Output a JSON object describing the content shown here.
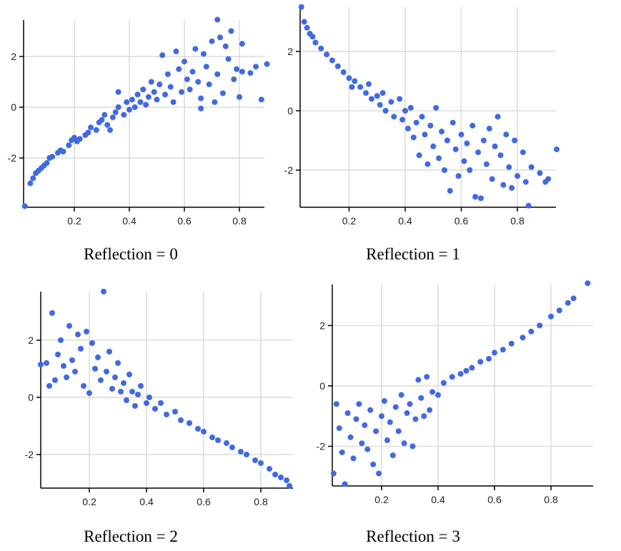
{
  "chart_data": [
    {
      "type": "scatter",
      "title": "Reflection = 0",
      "xlabel": "",
      "ylabel": "",
      "xlim": [
        0.015,
        0.89
      ],
      "ylim": [
        -3.9,
        3.4
      ],
      "xticks": [
        "0.2",
        "0.4",
        "0.6",
        "0.8"
      ],
      "yticks": [
        "-2",
        "0",
        "2"
      ],
      "grid": true,
      "color": "#4169e1",
      "points": [
        [
          0.02,
          -3.9
        ],
        [
          0.04,
          -3.0
        ],
        [
          0.05,
          -2.8
        ],
        [
          0.06,
          -2.6
        ],
        [
          0.07,
          -2.5
        ],
        [
          0.08,
          -2.4
        ],
        [
          0.09,
          -2.3
        ],
        [
          0.1,
          -2.2
        ],
        [
          0.11,
          -2.0
        ],
        [
          0.12,
          -1.95
        ],
        [
          0.14,
          -1.8
        ],
        [
          0.15,
          -1.7
        ],
        [
          0.16,
          -1.75
        ],
        [
          0.18,
          -1.5
        ],
        [
          0.19,
          -1.3
        ],
        [
          0.2,
          -1.2
        ],
        [
          0.21,
          -1.35
        ],
        [
          0.22,
          -1.25
        ],
        [
          0.24,
          -1.1
        ],
        [
          0.25,
          -1.0
        ],
        [
          0.26,
          -0.8
        ],
        [
          0.28,
          -0.9
        ],
        [
          0.29,
          -0.6
        ],
        [
          0.3,
          -0.5
        ],
        [
          0.31,
          -0.3
        ],
        [
          0.32,
          -0.7
        ],
        [
          0.33,
          -0.9
        ],
        [
          0.34,
          -0.4
        ],
        [
          0.35,
          -0.2
        ],
        [
          0.36,
          0.0
        ],
        [
          0.36,
          0.6
        ],
        [
          0.38,
          -0.3
        ],
        [
          0.39,
          0.2
        ],
        [
          0.4,
          -0.1
        ],
        [
          0.41,
          0.3
        ],
        [
          0.42,
          0.0
        ],
        [
          0.43,
          0.5
        ],
        [
          0.44,
          0.2
        ],
        [
          0.45,
          0.7
        ],
        [
          0.46,
          0.1
        ],
        [
          0.47,
          0.4
        ],
        [
          0.48,
          1.0
        ],
        [
          0.49,
          0.6
        ],
        [
          0.5,
          0.3
        ],
        [
          0.51,
          0.9
        ],
        [
          0.52,
          2.05
        ],
        [
          0.53,
          0.5
        ],
        [
          0.54,
          1.3
        ],
        [
          0.55,
          0.8
        ],
        [
          0.56,
          0.2
        ],
        [
          0.57,
          2.2
        ],
        [
          0.58,
          1.5
        ],
        [
          0.59,
          0.6
        ],
        [
          0.6,
          1.8
        ],
        [
          0.61,
          1.1
        ],
        [
          0.62,
          0.7
        ],
        [
          0.63,
          1.4
        ],
        [
          0.64,
          2.3
        ],
        [
          0.65,
          1.0
        ],
        [
          0.66,
          -0.05
        ],
        [
          0.66,
          0.35
        ],
        [
          0.67,
          2.1
        ],
        [
          0.68,
          1.6
        ],
        [
          0.69,
          0.9
        ],
        [
          0.7,
          2.6
        ],
        [
          0.71,
          0.2
        ],
        [
          0.72,
          3.45
        ],
        [
          0.72,
          1.3
        ],
        [
          0.73,
          2.75
        ],
        [
          0.74,
          0.55
        ],
        [
          0.75,
          2.4
        ],
        [
          0.76,
          1.9
        ],
        [
          0.77,
          3.0
        ],
        [
          0.78,
          1.1
        ],
        [
          0.79,
          1.5
        ],
        [
          0.8,
          0.4
        ],
        [
          0.81,
          2.5
        ],
        [
          0.81,
          1.4
        ],
        [
          0.84,
          1.35
        ],
        [
          0.86,
          1.6
        ],
        [
          0.88,
          0.3
        ],
        [
          0.9,
          1.7
        ]
      ]
    },
    {
      "type": "scatter",
      "title": "Reflection = 1",
      "xlabel": "",
      "ylabel": "",
      "xlim": [
        0.025,
        0.94
      ],
      "ylim": [
        -3.25,
        3.5
      ],
      "xticks": [
        "0.2",
        "0.4",
        "0.6",
        "0.8"
      ],
      "yticks": [
        "-2",
        "0",
        "2"
      ],
      "grid": true,
      "color": "#4169e1",
      "points": [
        [
          0.03,
          3.5
        ],
        [
          0.04,
          3.0
        ],
        [
          0.05,
          2.8
        ],
        [
          0.06,
          2.6
        ],
        [
          0.07,
          2.5
        ],
        [
          0.08,
          2.3
        ],
        [
          0.1,
          2.1
        ],
        [
          0.12,
          1.9
        ],
        [
          0.14,
          1.7
        ],
        [
          0.16,
          1.5
        ],
        [
          0.18,
          1.3
        ],
        [
          0.2,
          1.1
        ],
        [
          0.21,
          0.8
        ],
        [
          0.22,
          1.0
        ],
        [
          0.24,
          0.8
        ],
        [
          0.26,
          0.6
        ],
        [
          0.27,
          0.9
        ],
        [
          0.28,
          0.4
        ],
        [
          0.3,
          0.5
        ],
        [
          0.31,
          0.2
        ],
        [
          0.32,
          0.6
        ],
        [
          0.33,
          0.0
        ],
        [
          0.35,
          0.3
        ],
        [
          0.36,
          -0.2
        ],
        [
          0.38,
          0.4
        ],
        [
          0.39,
          -0.3
        ],
        [
          0.4,
          0.0
        ],
        [
          0.41,
          -0.6
        ],
        [
          0.42,
          0.1
        ],
        [
          0.43,
          -0.9
        ],
        [
          0.44,
          -0.4
        ],
        [
          0.45,
          -1.5
        ],
        [
          0.46,
          -0.2
        ],
        [
          0.47,
          -0.8
        ],
        [
          0.48,
          -1.8
        ],
        [
          0.49,
          -0.5
        ],
        [
          0.5,
          -1.2
        ],
        [
          0.51,
          0.1
        ],
        [
          0.52,
          -1.6
        ],
        [
          0.53,
          -0.7
        ],
        [
          0.54,
          -2.0
        ],
        [
          0.55,
          -1.0
        ],
        [
          0.56,
          -2.7
        ],
        [
          0.57,
          -0.4
        ],
        [
          0.58,
          -1.3
        ],
        [
          0.59,
          -2.2
        ],
        [
          0.6,
          -0.8
        ],
        [
          0.61,
          -1.7
        ],
        [
          0.62,
          -1.1
        ],
        [
          0.63,
          -2.0
        ],
        [
          0.64,
          -0.5
        ],
        [
          0.65,
          -2.9
        ],
        [
          0.66,
          -1.4
        ],
        [
          0.67,
          -2.95
        ],
        [
          0.68,
          -1.0
        ],
        [
          0.69,
          -1.8
        ],
        [
          0.7,
          -0.6
        ],
        [
          0.71,
          -2.3
        ],
        [
          0.72,
          -1.2
        ],
        [
          0.73,
          -0.2
        ],
        [
          0.74,
          -1.5
        ],
        [
          0.75,
          -2.5
        ],
        [
          0.76,
          -0.8
        ],
        [
          0.77,
          -1.9
        ],
        [
          0.78,
          -2.6
        ],
        [
          0.79,
          -1.0
        ],
        [
          0.8,
          -2.2
        ],
        [
          0.82,
          -1.4
        ],
        [
          0.83,
          -2.4
        ],
        [
          0.84,
          -3.2
        ],
        [
          0.85,
          -1.9
        ],
        [
          0.88,
          -2.1
        ],
        [
          0.9,
          -2.4
        ],
        [
          0.91,
          -2.3
        ],
        [
          0.94,
          -1.3
        ]
      ]
    },
    {
      "type": "scatter",
      "title": "Reflection = 2",
      "xlabel": "",
      "ylabel": "",
      "xlim": [
        0.03,
        0.91
      ],
      "ylim": [
        -3.18,
        3.7
      ],
      "xticks": [
        "0.2",
        "0.4",
        "0.6",
        "0.8"
      ],
      "yticks": [
        "-2",
        "0",
        "2"
      ],
      "grid": true,
      "color": "#4169e1",
      "points": [
        [
          0.03,
          1.15
        ],
        [
          0.05,
          1.2
        ],
        [
          0.06,
          0.4
        ],
        [
          0.07,
          2.95
        ],
        [
          0.08,
          0.6
        ],
        [
          0.09,
          1.5
        ],
        [
          0.1,
          2.0
        ],
        [
          0.11,
          1.1
        ],
        [
          0.12,
          0.7
        ],
        [
          0.13,
          2.5
        ],
        [
          0.14,
          1.3
        ],
        [
          0.15,
          0.9
        ],
        [
          0.16,
          2.2
        ],
        [
          0.17,
          1.7
        ],
        [
          0.18,
          0.4
        ],
        [
          0.19,
          2.3
        ],
        [
          0.2,
          0.15
        ],
        [
          0.21,
          1.9
        ],
        [
          0.22,
          1.0
        ],
        [
          0.23,
          1.4
        ],
        [
          0.24,
          0.6
        ],
        [
          0.25,
          3.7
        ],
        [
          0.26,
          0.9
        ],
        [
          0.27,
          1.6
        ],
        [
          0.28,
          0.3
        ],
        [
          0.29,
          0.7
        ],
        [
          0.3,
          1.2
        ],
        [
          0.31,
          0.2
        ],
        [
          0.32,
          0.5
        ],
        [
          0.33,
          -0.1
        ],
        [
          0.34,
          0.8
        ],
        [
          0.35,
          0.2
        ],
        [
          0.36,
          -0.3
        ],
        [
          0.37,
          0.1
        ],
        [
          0.38,
          0.4
        ],
        [
          0.4,
          -0.2
        ],
        [
          0.41,
          0.0
        ],
        [
          0.43,
          -0.4
        ],
        [
          0.45,
          -0.2
        ],
        [
          0.47,
          -0.6
        ],
        [
          0.5,
          -0.5
        ],
        [
          0.52,
          -0.8
        ],
        [
          0.55,
          -0.9
        ],
        [
          0.58,
          -1.1
        ],
        [
          0.6,
          -1.2
        ],
        [
          0.63,
          -1.4
        ],
        [
          0.65,
          -1.5
        ],
        [
          0.68,
          -1.6
        ],
        [
          0.7,
          -1.75
        ],
        [
          0.73,
          -1.9
        ],
        [
          0.75,
          -2.0
        ],
        [
          0.78,
          -2.2
        ],
        [
          0.8,
          -2.3
        ],
        [
          0.83,
          -2.5
        ],
        [
          0.85,
          -2.7
        ],
        [
          0.87,
          -2.8
        ],
        [
          0.89,
          -2.9
        ],
        [
          0.9,
          -3.1
        ]
      ]
    },
    {
      "type": "scatter",
      "title": "Reflection = 3",
      "xlabel": "",
      "ylabel": "",
      "xlim": [
        0.025,
        0.95
      ],
      "ylim": [
        -3.3,
        3.35
      ],
      "xticks": [
        "0.2",
        "0.4",
        "0.6",
        "0.8"
      ],
      "yticks": [
        "-2",
        "0",
        "2"
      ],
      "grid": true,
      "color": "#4169e1",
      "points": [
        [
          0.03,
          -2.9
        ],
        [
          0.04,
          -0.6
        ],
        [
          0.05,
          -1.4
        ],
        [
          0.06,
          -2.2
        ],
        [
          0.07,
          -3.25
        ],
        [
          0.08,
          -0.9
        ],
        [
          0.09,
          -1.7
        ],
        [
          0.1,
          -2.4
        ],
        [
          0.11,
          -1.1
        ],
        [
          0.12,
          -0.6
        ],
        [
          0.13,
          -1.9
        ],
        [
          0.14,
          -1.3
        ],
        [
          0.15,
          -2.1
        ],
        [
          0.16,
          -0.8
        ],
        [
          0.17,
          -2.6
        ],
        [
          0.18,
          -1.5
        ],
        [
          0.19,
          -2.9
        ],
        [
          0.2,
          -1.0
        ],
        [
          0.21,
          -0.5
        ],
        [
          0.22,
          -1.8
        ],
        [
          0.23,
          -1.2
        ],
        [
          0.24,
          -2.3
        ],
        [
          0.25,
          -0.7
        ],
        [
          0.26,
          -1.5
        ],
        [
          0.27,
          -0.3
        ],
        [
          0.28,
          -1.9
        ],
        [
          0.29,
          -0.9
        ],
        [
          0.3,
          -0.6
        ],
        [
          0.31,
          -2.0
        ],
        [
          0.32,
          -1.1
        ],
        [
          0.33,
          0.2
        ],
        [
          0.34,
          -0.4
        ],
        [
          0.35,
          -1.0
        ],
        [
          0.36,
          0.3
        ],
        [
          0.37,
          -0.8
        ],
        [
          0.38,
          -0.2
        ],
        [
          0.4,
          -0.3
        ],
        [
          0.42,
          0.1
        ],
        [
          0.45,
          0.3
        ],
        [
          0.48,
          0.4
        ],
        [
          0.5,
          0.5
        ],
        [
          0.52,
          0.6
        ],
        [
          0.55,
          0.8
        ],
        [
          0.58,
          0.9
        ],
        [
          0.6,
          1.1
        ],
        [
          0.63,
          1.2
        ],
        [
          0.66,
          1.4
        ],
        [
          0.7,
          1.6
        ],
        [
          0.73,
          1.8
        ],
        [
          0.76,
          2.0
        ],
        [
          0.8,
          2.3
        ],
        [
          0.83,
          2.5
        ],
        [
          0.86,
          2.75
        ],
        [
          0.88,
          2.9
        ],
        [
          0.93,
          3.4
        ]
      ]
    }
  ]
}
